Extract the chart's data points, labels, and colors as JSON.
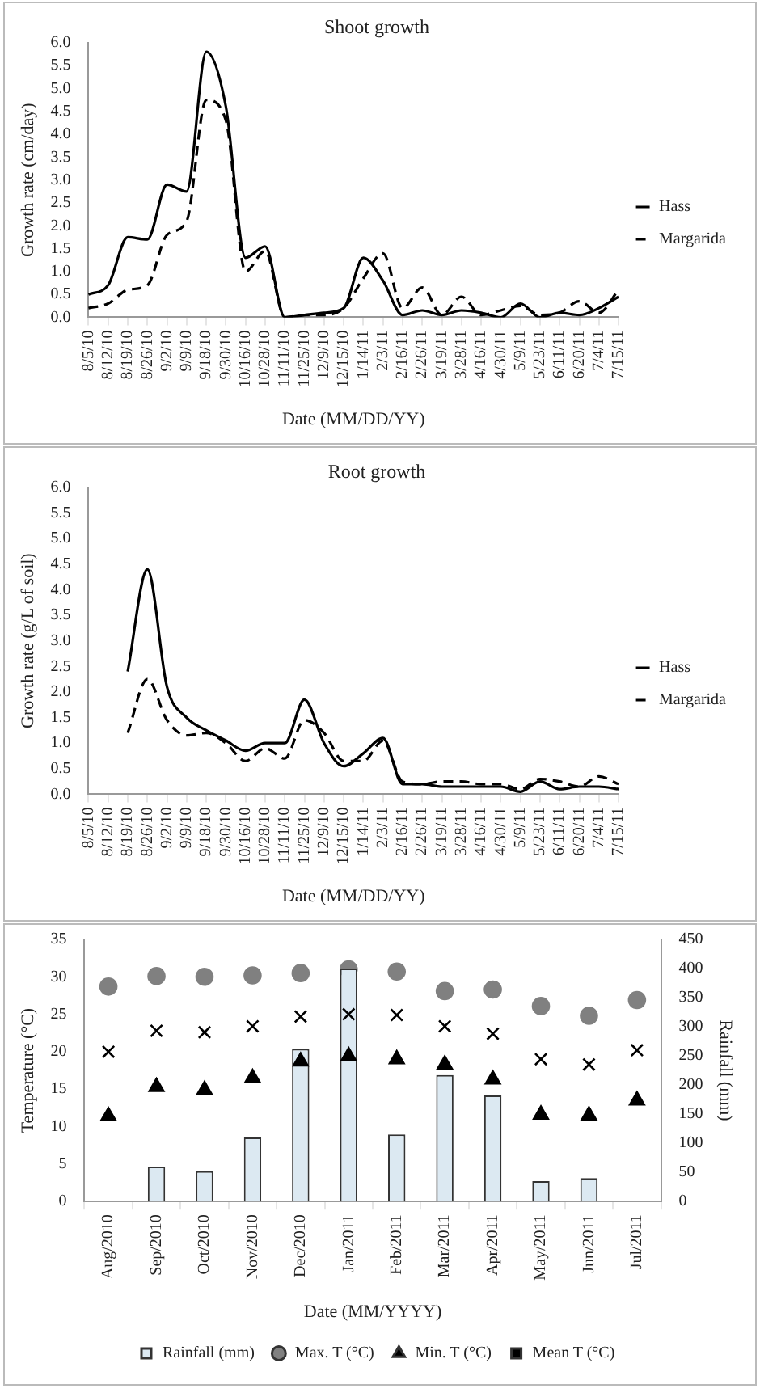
{
  "chart_data": [
    {
      "type": "line",
      "title": "Shoot growth",
      "xlabel": "Date (MM/DD/YY)",
      "ylabel": "Growth rate (cm/day)",
      "legend": "right",
      "grid": false,
      "marker": "none",
      "categories": [
        "8/5/10",
        "8/12/10",
        "8/19/10",
        "8/26/10",
        "9/2/10",
        "9/9/10",
        "9/18/10",
        "9/30/10",
        "10/16/10",
        "10/28/10",
        "11/11/10",
        "11/25/10",
        "12/9/10",
        "12/15/10",
        "1/14/11",
        "2/3/11",
        "2/16/11",
        "2/26/11",
        "3/19/11",
        "3/28/11",
        "4/16/11",
        "4/30/11",
        "5/9/11",
        "5/23/11",
        "6/11/11",
        "6/20/11",
        "7/4/11",
        "7/15/11"
      ],
      "ylim": [
        0,
        6
      ],
      "yticks": [
        {
          "value": 0,
          "label": "0.0"
        },
        {
          "value": 0.5,
          "label": "0.5"
        },
        {
          "value": 1,
          "label": "1.0"
        },
        {
          "value": 1.5,
          "label": "1.5"
        },
        {
          "value": 2,
          "label": "2.0"
        },
        {
          "value": 2.5,
          "label": "2.5"
        },
        {
          "value": 3,
          "label": "3.0"
        },
        {
          "value": 3.5,
          "label": "3.5"
        },
        {
          "value": 4,
          "label": "4.0"
        },
        {
          "value": 4.5,
          "label": "4.5"
        },
        {
          "value": 5,
          "label": "5.0"
        },
        {
          "value": 5.5,
          "label": "5.5"
        },
        {
          "value": 6,
          "label": "6.0"
        }
      ],
      "series": [
        {
          "name": "Hass",
          "color": "#000000",
          "line_style": "solid",
          "values": [
            0.5,
            0.7,
            1.75,
            1.7,
            2.9,
            2.75,
            5.8,
            4.6,
            1.3,
            1.55,
            0.0,
            0.05,
            0.1,
            0.2,
            1.3,
            0.8,
            0.05,
            0.15,
            0.05,
            0.15,
            0.1,
            0.0,
            0.3,
            0.0,
            0.1,
            0.05,
            0.2,
            0.45
          ]
        },
        {
          "name": "Margarida",
          "color": "#000000",
          "line_style": "dashed",
          "values": [
            0.2,
            0.3,
            0.6,
            0.7,
            1.8,
            2.1,
            4.75,
            4.3,
            1.0,
            1.45,
            0.0,
            0.05,
            0.05,
            0.2,
            0.85,
            1.4,
            0.2,
            0.65,
            0.05,
            0.45,
            0.05,
            0.15,
            0.25,
            0.05,
            0.1,
            0.35,
            0.1,
            0.6
          ]
        }
      ]
    },
    {
      "type": "line",
      "title": "Root growth",
      "xlabel": "Date (MM/DD/YY)",
      "ylabel": "Growth rate (g/L of soil)",
      "legend": "right",
      "grid": false,
      "marker": "none",
      "categories": [
        "8/5/10",
        "8/12/10",
        "8/19/10",
        "8/26/10",
        "9/2/10",
        "9/9/10",
        "9/18/10",
        "9/30/10",
        "10/16/10",
        "10/28/10",
        "11/11/10",
        "11/25/10",
        "12/9/10",
        "12/15/10",
        "1/14/11",
        "2/3/11",
        "2/16/11",
        "2/26/11",
        "3/19/11",
        "3/28/11",
        "4/16/11",
        "4/30/11",
        "5/9/11",
        "5/23/11",
        "6/11/11",
        "6/20/11",
        "7/4/11",
        "7/15/11"
      ],
      "ylim": [
        0,
        6
      ],
      "yticks": [
        {
          "value": 0,
          "label": "0.0"
        },
        {
          "value": 0.5,
          "label": "0.5"
        },
        {
          "value": 1,
          "label": "1.0"
        },
        {
          "value": 1.5,
          "label": "1.5"
        },
        {
          "value": 2,
          "label": "2.0"
        },
        {
          "value": 2.5,
          "label": "2.5"
        },
        {
          "value": 3,
          "label": "3.0"
        },
        {
          "value": 3.5,
          "label": "3.5"
        },
        {
          "value": 4,
          "label": "4.0"
        },
        {
          "value": 4.5,
          "label": "4.5"
        },
        {
          "value": 5,
          "label": "5.0"
        },
        {
          "value": 5.5,
          "label": "5.5"
        },
        {
          "value": 6,
          "label": "6.0"
        }
      ],
      "series": [
        {
          "name": "Hass",
          "color": "#000000",
          "line_style": "solid",
          "values": [
            null,
            null,
            2.4,
            4.4,
            2.1,
            1.5,
            1.25,
            1.05,
            0.85,
            1.0,
            1.0,
            1.85,
            1.0,
            0.55,
            0.8,
            1.1,
            0.2,
            0.2,
            0.15,
            0.15,
            0.15,
            0.15,
            0.05,
            0.25,
            0.1,
            0.15,
            0.15,
            0.1
          ]
        },
        {
          "name": "Margarida",
          "color": "#000000",
          "line_style": "dashed",
          "values": [
            null,
            null,
            1.2,
            2.25,
            1.45,
            1.15,
            1.2,
            1.0,
            0.65,
            0.9,
            0.7,
            1.45,
            1.2,
            0.65,
            0.65,
            1.05,
            0.25,
            0.2,
            0.25,
            0.25,
            0.2,
            0.2,
            0.1,
            0.3,
            0.25,
            0.15,
            0.35,
            0.2
          ]
        }
      ]
    },
    {
      "type": "bar",
      "xlabel": "Date (MM/YYYY)",
      "ylabel": "Temperature (°C)",
      "y2label": "Rainfall (mm)",
      "legend": "bottom",
      "grid": false,
      "categories": [
        "Aug/2010",
        "Sep/2010",
        "Oct/2010",
        "Nov/2010",
        "Dec/2010",
        "Jan/2011",
        "Feb/2011",
        "Mar/2011",
        "Apr/2011",
        "May/2011",
        "Jun/2011",
        "Jul/2011"
      ],
      "ylim": [
        0,
        35
      ],
      "yticks": [
        0,
        5,
        10,
        15,
        20,
        25,
        30,
        35
      ],
      "y2lim": [
        0,
        450
      ],
      "y2ticks": [
        0,
        50,
        100,
        150,
        200,
        250,
        300,
        350,
        400,
        450
      ],
      "series": [
        {
          "name": "Rainfall (mm)",
          "type": "bar",
          "axis": "y2",
          "color": "#dce9f2",
          "values": [
            null,
            60,
            52,
            110,
            262,
            400,
            115,
            217,
            182,
            35,
            40,
            null
          ]
        },
        {
          "name": "Max. T (°C)",
          "type": "scatter",
          "marker": "circle",
          "color": "#808080",
          "x": [
            "Aug/2010",
            "Sep/2010",
            "Oct/2010",
            "Nov/2010",
            "Dec/2010",
            "Jan/2011",
            "Feb/2011",
            "Mar/2011",
            "Apr/2011",
            "May/2011",
            "Jun/2011",
            "Jul/2011"
          ],
          "values": [
            28.7,
            30.1,
            30.0,
            30.2,
            30.5,
            31.0,
            30.7,
            28.1,
            28.3,
            26.1,
            24.8,
            26.9
          ]
        },
        {
          "name": "Min. T (°C)",
          "type": "scatter",
          "marker": "triangle",
          "color": "#000000",
          "x": [
            "Aug/2010",
            "Sep/2010",
            "Oct/2010",
            "Nov/2010",
            "Dec/2010",
            "Jan/2011",
            "Feb/2011",
            "Mar/2011",
            "Apr/2011",
            "May/2011",
            "Jun/2011",
            "Jul/2011"
          ],
          "values": [
            11.4,
            15.3,
            14.9,
            16.5,
            18.7,
            19.4,
            19.0,
            18.3,
            16.3,
            11.6,
            11.5,
            13.5
          ]
        },
        {
          "name": "Mean T (°C)",
          "type": "scatter",
          "marker": "cross",
          "color": "#000000",
          "x": [
            "Aug/2010",
            "Sep/2010",
            "Oct/2010",
            "Nov/2010",
            "Dec/2010",
            "Jan/2011",
            "Feb/2011",
            "Mar/2011",
            "Apr/2011",
            "May/2011",
            "Jun/2011",
            "Jul/2011"
          ],
          "values": [
            20.0,
            22.8,
            22.6,
            23.4,
            24.7,
            25.0,
            24.9,
            23.4,
            22.4,
            19.0,
            18.3,
            20.2
          ]
        }
      ]
    }
  ]
}
